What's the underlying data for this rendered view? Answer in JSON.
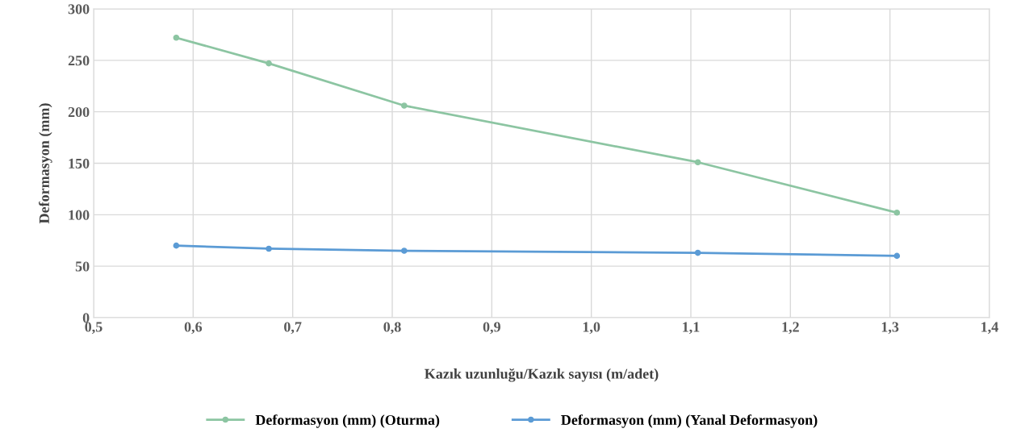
{
  "chart_data": {
    "type": "line",
    "xlabel": "Kazık uzunluğu/Kazık sayısı (m/adet)",
    "ylabel": "Deformasyon (mm)",
    "series": [
      {
        "name": "Deformasyon (mm) (Oturma)",
        "color": "#8cc5a2",
        "x": [
          0.583,
          0.676,
          0.812,
          1.107,
          1.307
        ],
        "values": [
          272,
          247,
          206,
          151,
          102
        ]
      },
      {
        "name": "Deformasyon (mm) (Yanal Deformasyon)",
        "color": "#5b9bd5",
        "x": [
          0.583,
          0.676,
          0.812,
          1.107,
          1.307
        ],
        "values": [
          70,
          67,
          65,
          63,
          60
        ]
      }
    ],
    "xlim": [
      0.5,
      1.4
    ],
    "xticks": [
      {
        "value": 0.5,
        "label": "0,5"
      },
      {
        "value": 0.6,
        "label": "0,6"
      },
      {
        "value": 0.7,
        "label": "0,7"
      },
      {
        "value": 0.8,
        "label": "0,8"
      },
      {
        "value": 0.9,
        "label": "0,9"
      },
      {
        "value": 1.0,
        "label": "1,0"
      },
      {
        "value": 1.1,
        "label": "1,1"
      },
      {
        "value": 1.2,
        "label": "1,2"
      },
      {
        "value": 1.3,
        "label": "1,3"
      },
      {
        "value": 1.4,
        "label": "1,4"
      }
    ],
    "ylim": [
      0,
      300
    ],
    "yticks": [
      0,
      50,
      100,
      150,
      200,
      250,
      300
    ],
    "grid": true,
    "legend": "bottom",
    "marker": "circle",
    "line_style": "solid"
  }
}
